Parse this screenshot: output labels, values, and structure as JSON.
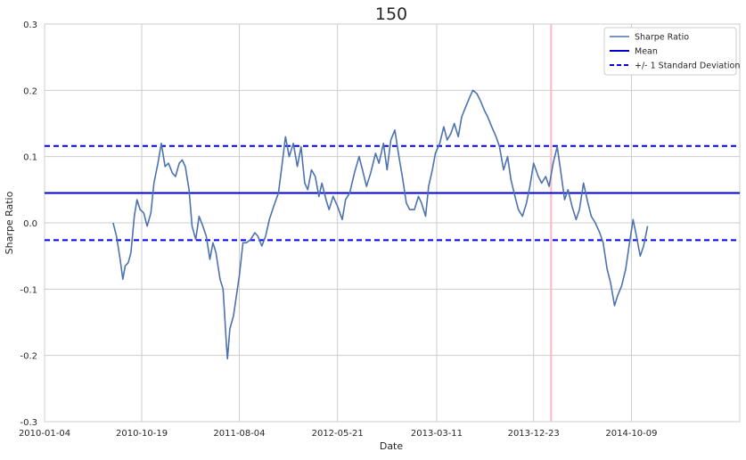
{
  "chart_data": {
    "type": "line",
    "title": "150",
    "xlabel": "Date",
    "ylabel": "Sharpe Ratio",
    "xlim": [
      "2010-01-04",
      "2015-08-26"
    ],
    "ylim": [
      -0.3,
      0.3
    ],
    "x_ticks": [
      "2010-01-04",
      "2010-10-19",
      "2011-08-04",
      "2012-05-21",
      "2013-03-11",
      "2013-12-23",
      "2014-10-09"
    ],
    "y_ticks": [
      -0.3,
      -0.2,
      -0.1,
      0.0,
      0.1,
      0.2,
      0.3
    ],
    "y_tick_labels": [
      "-0.3",
      "-0.2",
      "-0.1",
      "0.0",
      "0.1",
      "0.2",
      "0.3"
    ],
    "grid": true,
    "legend_position": "top-right",
    "legend": [
      "Sharpe Ratio",
      "Mean",
      "+/- 1 Standard Deviation"
    ],
    "colors": {
      "sharpe": "#4c72b0",
      "mean": "#0000cc",
      "std": "#0000ee",
      "vline": "#ffb6c1",
      "grid": "#cccccc"
    },
    "mean": 0.045,
    "std_upper": 0.116,
    "std_lower": -0.026,
    "vertical_line_x": "2014-02-13",
    "series": [
      {
        "name": "Sharpe Ratio",
        "points": [
          [
            "2010-07-26",
            0.0
          ],
          [
            "2010-08-05",
            -0.02
          ],
          [
            "2010-08-16",
            -0.055
          ],
          [
            "2010-08-24",
            -0.085
          ],
          [
            "2010-08-31",
            -0.065
          ],
          [
            "2010-09-09",
            -0.06
          ],
          [
            "2010-09-17",
            -0.045
          ],
          [
            "2010-09-27",
            0.01
          ],
          [
            "2010-10-05",
            0.035
          ],
          [
            "2010-10-14",
            0.02
          ],
          [
            "2010-10-25",
            0.015
          ],
          [
            "2010-11-04",
            -0.005
          ],
          [
            "2010-11-15",
            0.015
          ],
          [
            "2010-11-24",
            0.06
          ],
          [
            "2010-12-06",
            0.09
          ],
          [
            "2010-12-16",
            0.12
          ],
          [
            "2010-12-27",
            0.085
          ],
          [
            "2011-01-06",
            0.09
          ],
          [
            "2011-01-18",
            0.075
          ],
          [
            "2011-01-27",
            0.07
          ],
          [
            "2011-02-07",
            0.09
          ],
          [
            "2011-02-16",
            0.095
          ],
          [
            "2011-02-25",
            0.085
          ],
          [
            "2011-03-08",
            0.05
          ],
          [
            "2011-03-17",
            -0.005
          ],
          [
            "2011-03-28",
            -0.025
          ],
          [
            "2011-04-07",
            0.01
          ],
          [
            "2011-04-18",
            -0.005
          ],
          [
            "2011-04-28",
            -0.02
          ],
          [
            "2011-05-09",
            -0.055
          ],
          [
            "2011-05-18",
            -0.03
          ],
          [
            "2011-05-27",
            -0.045
          ],
          [
            "2011-06-08",
            -0.085
          ],
          [
            "2011-06-17",
            -0.1
          ],
          [
            "2011-06-27",
            -0.185
          ],
          [
            "2011-06-30",
            -0.205
          ],
          [
            "2011-07-07",
            -0.16
          ],
          [
            "2011-07-18",
            -0.14
          ],
          [
            "2011-07-28",
            -0.105
          ],
          [
            "2011-08-04",
            -0.08
          ],
          [
            "2011-08-15",
            -0.03
          ],
          [
            "2011-08-25",
            -0.03
          ],
          [
            "2011-09-07",
            -0.025
          ],
          [
            "2011-09-19",
            -0.015
          ],
          [
            "2011-09-28",
            -0.02
          ],
          [
            "2011-10-10",
            -0.035
          ],
          [
            "2011-10-21",
            -0.02
          ],
          [
            "2011-11-01",
            0.005
          ],
          [
            "2011-11-14",
            0.025
          ],
          [
            "2011-11-28",
            0.045
          ],
          [
            "2011-12-08",
            0.085
          ],
          [
            "2011-12-19",
            0.13
          ],
          [
            "2011-12-30",
            0.1
          ],
          [
            "2012-01-11",
            0.12
          ],
          [
            "2012-01-23",
            0.085
          ],
          [
            "2012-02-03",
            0.115
          ],
          [
            "2012-02-14",
            0.06
          ],
          [
            "2012-02-23",
            0.05
          ],
          [
            "2012-03-05",
            0.08
          ],
          [
            "2012-03-16",
            0.07
          ],
          [
            "2012-03-27",
            0.04
          ],
          [
            "2012-04-05",
            0.06
          ],
          [
            "2012-04-17",
            0.035
          ],
          [
            "2012-04-26",
            0.02
          ],
          [
            "2012-05-08",
            0.04
          ],
          [
            "2012-05-21",
            0.025
          ],
          [
            "2012-06-04",
            0.005
          ],
          [
            "2012-06-14",
            0.035
          ],
          [
            "2012-06-26",
            0.045
          ],
          [
            "2012-07-10",
            0.075
          ],
          [
            "2012-07-24",
            0.1
          ],
          [
            "2012-08-03",
            0.08
          ],
          [
            "2012-08-15",
            0.055
          ],
          [
            "2012-08-27",
            0.075
          ],
          [
            "2012-09-11",
            0.105
          ],
          [
            "2012-09-21",
            0.09
          ],
          [
            "2012-10-04",
            0.12
          ],
          [
            "2012-10-15",
            0.08
          ],
          [
            "2012-10-26",
            0.125
          ],
          [
            "2012-11-07",
            0.14
          ],
          [
            "2012-11-19",
            0.1
          ],
          [
            "2012-11-29",
            0.07
          ],
          [
            "2012-12-11",
            0.03
          ],
          [
            "2012-12-21",
            0.02
          ],
          [
            "2013-01-04",
            0.02
          ],
          [
            "2013-01-16",
            0.04
          ],
          [
            "2013-01-25",
            0.03
          ],
          [
            "2013-02-06",
            0.01
          ],
          [
            "2013-02-15",
            0.055
          ],
          [
            "2013-02-26",
            0.08
          ],
          [
            "2013-03-07",
            0.105
          ],
          [
            "2013-03-20",
            0.12
          ],
          [
            "2013-04-01",
            0.145
          ],
          [
            "2013-04-11",
            0.125
          ],
          [
            "2013-04-22",
            0.135
          ],
          [
            "2013-05-02",
            0.15
          ],
          [
            "2013-05-14",
            0.13
          ],
          [
            "2013-05-24",
            0.16
          ],
          [
            "2013-06-05",
            0.175
          ],
          [
            "2013-06-17",
            0.19
          ],
          [
            "2013-06-26",
            0.2
          ],
          [
            "2013-07-08",
            0.195
          ],
          [
            "2013-07-18",
            0.185
          ],
          [
            "2013-07-30",
            0.17
          ],
          [
            "2013-08-09",
            0.16
          ],
          [
            "2013-08-21",
            0.145
          ],
          [
            "2013-09-03",
            0.13
          ],
          [
            "2013-09-13",
            0.115
          ],
          [
            "2013-09-25",
            0.08
          ],
          [
            "2013-10-07",
            0.1
          ],
          [
            "2013-10-17",
            0.065
          ],
          [
            "2013-10-29",
            0.04
          ],
          [
            "2013-11-08",
            0.02
          ],
          [
            "2013-11-20",
            0.01
          ],
          [
            "2013-12-02",
            0.03
          ],
          [
            "2013-12-12",
            0.055
          ],
          [
            "2013-12-23",
            0.09
          ],
          [
            "2014-01-06",
            0.07
          ],
          [
            "2014-01-16",
            0.06
          ],
          [
            "2014-01-28",
            0.07
          ],
          [
            "2014-02-07",
            0.055
          ],
          [
            "2014-02-19",
            0.09
          ],
          [
            "2014-03-03",
            0.115
          ],
          [
            "2014-03-13",
            0.08
          ],
          [
            "2014-03-25",
            0.035
          ],
          [
            "2014-04-04",
            0.05
          ],
          [
            "2014-04-16",
            0.025
          ],
          [
            "2014-04-28",
            0.005
          ],
          [
            "2014-05-08",
            0.02
          ],
          [
            "2014-05-20",
            0.06
          ],
          [
            "2014-06-02",
            0.03
          ],
          [
            "2014-06-12",
            0.01
          ],
          [
            "2014-06-24",
            0.0
          ],
          [
            "2014-07-07",
            -0.015
          ],
          [
            "2014-07-17",
            -0.03
          ],
          [
            "2014-07-29",
            -0.07
          ],
          [
            "2014-08-08",
            -0.09
          ],
          [
            "2014-08-20",
            -0.125
          ],
          [
            "2014-08-29",
            -0.11
          ],
          [
            "2014-09-10",
            -0.095
          ],
          [
            "2014-09-22",
            -0.07
          ],
          [
            "2014-10-02",
            -0.035
          ],
          [
            "2014-10-14",
            0.005
          ],
          [
            "2014-10-24",
            -0.02
          ],
          [
            "2014-11-04",
            -0.05
          ],
          [
            "2014-11-14",
            -0.035
          ],
          [
            "2014-11-26",
            -0.005
          ]
        ]
      },
      {
        "name": "Mean"
      },
      {
        "name": "+/- 1 Standard Deviation"
      }
    ]
  }
}
